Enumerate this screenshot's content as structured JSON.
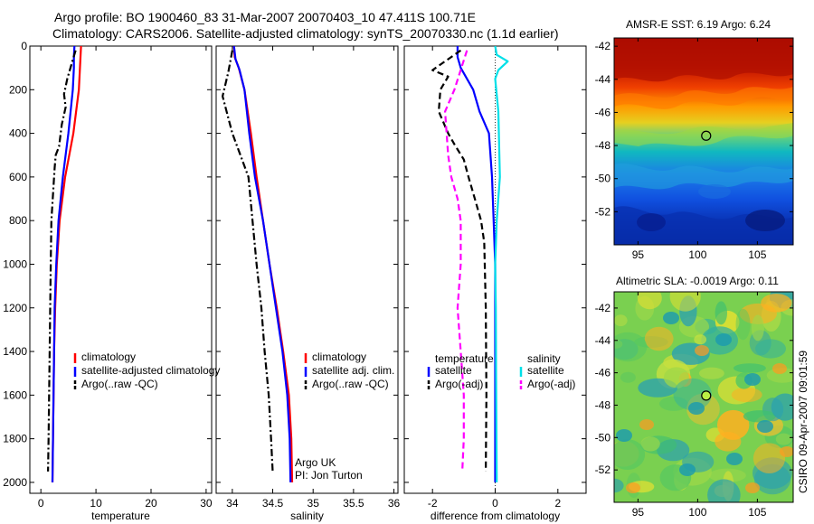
{
  "titles": {
    "line1": "Argo profile: BO 1900460_83 31-Mar-2007 20070403_10 47.411S 100.71E",
    "line2": "Climatology: CARS2006. Satellite-adjusted climatology: synTS_20070330.nc (1.1d earlier)"
  },
  "side_stamp": "CSIRO 09-Apr-2007 09:01:59",
  "colors": {
    "climatology": "#ff0000",
    "satellite": "#0000ff",
    "argo": "#000000",
    "satellite_salinity": "#00e0e8",
    "argo_salinity_adj": "#ff00ff"
  },
  "chart_data": [
    {
      "type": "line",
      "ylabel_hidden": true,
      "xlabel": "temperature",
      "xlim": [
        -2,
        31
      ],
      "ylim": [
        2050,
        0
      ],
      "xticks": [
        0,
        10,
        20,
        30
      ],
      "yticks": [
        0,
        200,
        400,
        600,
        800,
        1000,
        1200,
        1400,
        1600,
        1800,
        2000
      ],
      "legend": [
        "climatology",
        "satellite-adjusted climatology",
        "Argo(..raw -QC)"
      ],
      "series": [
        {
          "name": "climatology",
          "color": "#ff0000",
          "dash": "solid",
          "points": [
            [
              7.3,
              0
            ],
            [
              7.2,
              50
            ],
            [
              7.1,
              100
            ],
            [
              6.9,
              200
            ],
            [
              5.9,
              400
            ],
            [
              4.4,
              600
            ],
            [
              3.4,
              800
            ],
            [
              2.9,
              1000
            ],
            [
              2.6,
              1200
            ],
            [
              2.4,
              1400
            ],
            [
              2.3,
              1600
            ],
            [
              2.2,
              1800
            ],
            [
              2.1,
              2000
            ]
          ]
        },
        {
          "name": "satellite-adjusted climatology",
          "color": "#0000ff",
          "dash": "solid",
          "points": [
            [
              6.1,
              0
            ],
            [
              6.0,
              50
            ],
            [
              6.0,
              100
            ],
            [
              5.8,
              200
            ],
            [
              5.0,
              400
            ],
            [
              4.0,
              600
            ],
            [
              3.2,
              800
            ],
            [
              2.8,
              1000
            ],
            [
              2.5,
              1200
            ],
            [
              2.4,
              1400
            ],
            [
              2.3,
              1600
            ],
            [
              2.2,
              1800
            ],
            [
              2.1,
              2000
            ]
          ]
        },
        {
          "name": "Argo(..raw -QC)",
          "color": "#000000",
          "dash": "dashdot",
          "points": [
            [
              6.3,
              20
            ],
            [
              5.6,
              80
            ],
            [
              4.8,
              150
            ],
            [
              4.2,
              220
            ],
            [
              4.5,
              280
            ],
            [
              3.8,
              360
            ],
            [
              3.3,
              460
            ],
            [
              2.7,
              500
            ],
            [
              2.5,
              560
            ],
            [
              2.1,
              720
            ],
            [
              1.9,
              800
            ],
            [
              1.8,
              1000
            ],
            [
              1.7,
              1200
            ],
            [
              1.6,
              1400
            ],
            [
              1.5,
              1600
            ],
            [
              1.4,
              1800
            ],
            [
              1.3,
              1950
            ]
          ]
        }
      ]
    },
    {
      "type": "line",
      "xlabel": "salinity",
      "xlim": [
        33.8,
        36.05
      ],
      "ylim": [
        2050,
        0
      ],
      "xticks": [
        34,
        34.5,
        35,
        35.5,
        36
      ],
      "yticks": [
        0,
        200,
        400,
        600,
        800,
        1000,
        1200,
        1400,
        1600,
        1800,
        2000
      ],
      "legend": [
        "climatology",
        "satellite adj. clim.",
        "Argo(..raw -QC)"
      ],
      "annotation": [
        "Argo UK",
        "PI: Jon Turton"
      ],
      "series": [
        {
          "name": "climatology",
          "color": "#ff0000",
          "dash": "solid",
          "points": [
            [
              34.02,
              0
            ],
            [
              34.03,
              50
            ],
            [
              34.08,
              100
            ],
            [
              34.15,
              200
            ],
            [
              34.23,
              400
            ],
            [
              34.3,
              600
            ],
            [
              34.38,
              800
            ],
            [
              34.46,
              1000
            ],
            [
              34.55,
              1200
            ],
            [
              34.63,
              1400
            ],
            [
              34.7,
              1600
            ],
            [
              34.73,
              1800
            ],
            [
              34.74,
              2000
            ]
          ]
        },
        {
          "name": "satellite adj. clim.",
          "color": "#0000ff",
          "dash": "solid",
          "points": [
            [
              34.02,
              0
            ],
            [
              34.04,
              60
            ],
            [
              34.09,
              110
            ],
            [
              34.15,
              200
            ],
            [
              34.21,
              400
            ],
            [
              34.28,
              600
            ],
            [
              34.38,
              800
            ],
            [
              34.46,
              1000
            ],
            [
              34.54,
              1200
            ],
            [
              34.62,
              1400
            ],
            [
              34.68,
              1600
            ],
            [
              34.71,
              1800
            ],
            [
              34.72,
              2000
            ]
          ]
        },
        {
          "name": "Argo(..raw -QC)",
          "color": "#000000",
          "dash": "dashdot",
          "points": [
            [
              34.0,
              20
            ],
            [
              33.95,
              120
            ],
            [
              33.88,
              230
            ],
            [
              34.0,
              400
            ],
            [
              34.1,
              500
            ],
            [
              34.2,
              600
            ],
            [
              34.25,
              800
            ],
            [
              34.3,
              1000
            ],
            [
              34.36,
              1200
            ],
            [
              34.4,
              1400
            ],
            [
              34.45,
              1600
            ],
            [
              34.48,
              1800
            ],
            [
              34.5,
              1950
            ]
          ]
        }
      ]
    },
    {
      "type": "line",
      "xlabel": "difference from climatology",
      "xlim": [
        -2.9,
        2.9
      ],
      "ylim": [
        2050,
        0
      ],
      "xticks": [
        -2,
        0,
        2
      ],
      "yticks": [
        0,
        200,
        400,
        600,
        800,
        1000,
        1200,
        1400,
        1600,
        1800,
        2000
      ],
      "legend_left_title": "temperature",
      "legend_right_title": "salinity",
      "legend_left": [
        "satellite",
        "Argo(-adj)"
      ],
      "legend_right": [
        "satellite",
        "Argo(-adj)"
      ],
      "series": [
        {
          "name": "temperature satellite",
          "color": "#0000ff",
          "dash": "solid",
          "points": [
            [
              -1.2,
              0
            ],
            [
              -1.2,
              50
            ],
            [
              -1.1,
              100
            ],
            [
              -0.9,
              150
            ],
            [
              -0.7,
              200
            ],
            [
              -0.5,
              300
            ],
            [
              -0.2,
              400
            ],
            [
              -0.15,
              500
            ],
            [
              -0.1,
              600
            ],
            [
              -0.05,
              800
            ],
            [
              0,
              1000
            ],
            [
              0,
              1500
            ],
            [
              0,
              2000
            ]
          ]
        },
        {
          "name": "temperature Argo(-adj)",
          "color": "#000000",
          "dash": "dashed",
          "points": [
            [
              -1.1,
              20
            ],
            [
              -2.0,
              110
            ],
            [
              -1.5,
              140
            ],
            [
              -1.75,
              200
            ],
            [
              -1.8,
              300
            ],
            [
              -1.5,
              400
            ],
            [
              -1.3,
              450
            ],
            [
              -1.0,
              520
            ],
            [
              -0.85,
              600
            ],
            [
              -0.65,
              700
            ],
            [
              -0.45,
              800
            ],
            [
              -0.35,
              900
            ],
            [
              -0.3,
              1200
            ],
            [
              -0.28,
              1600
            ],
            [
              -0.3,
              1950
            ]
          ]
        },
        {
          "name": "salinity satellite",
          "color": "#00e0e8",
          "dash": "solid",
          "points": [
            [
              0.0,
              0
            ],
            [
              0.05,
              40
            ],
            [
              0.4,
              70
            ],
            [
              0.1,
              110
            ],
            [
              0.0,
              150
            ],
            [
              0.1,
              300
            ],
            [
              0.15,
              600
            ],
            [
              0.05,
              800
            ],
            [
              0.0,
              1000
            ],
            [
              0.02,
              1200
            ],
            [
              0.03,
              1500
            ],
            [
              0.05,
              2000
            ]
          ]
        },
        {
          "name": "salinity Argo(-adj)",
          "color": "#ff00ff",
          "dash": "dashed",
          "points": [
            [
              -0.9,
              20
            ],
            [
              -1.3,
              200
            ],
            [
              -1.6,
              300
            ],
            [
              -1.5,
              500
            ],
            [
              -1.4,
              600
            ],
            [
              -1.2,
              700
            ],
            [
              -1.1,
              800
            ],
            [
              -1.1,
              1000
            ],
            [
              -1.2,
              1200
            ],
            [
              -1.1,
              1400
            ],
            [
              -1.0,
              1600
            ],
            [
              -1.0,
              1800
            ],
            [
              -1.05,
              1950
            ]
          ]
        }
      ]
    },
    {
      "type": "heatmap",
      "title": "AMSR-E SST: 6.19 Argo: 6.24",
      "xlim": [
        93,
        108
      ],
      "ylim": [
        -54,
        -41.5
      ],
      "xticks": [
        95,
        100,
        105
      ],
      "yticks": [
        -42,
        -44,
        -46,
        -48,
        -50,
        -52
      ],
      "marker": {
        "lon": 100.71,
        "lat": -47.41,
        "fill": "none"
      }
    },
    {
      "type": "heatmap",
      "title": "Altimetric SLA: -0.0019 Argo: 0.11",
      "xlim": [
        93,
        108
      ],
      "ylim": [
        -54,
        -41
      ],
      "xticks": [
        95,
        100,
        105
      ],
      "yticks": [
        -42,
        -44,
        -46,
        -48,
        -50,
        -52
      ],
      "marker": {
        "lon": 100.71,
        "lat": -47.41,
        "fill": "#bbee44"
      }
    }
  ]
}
